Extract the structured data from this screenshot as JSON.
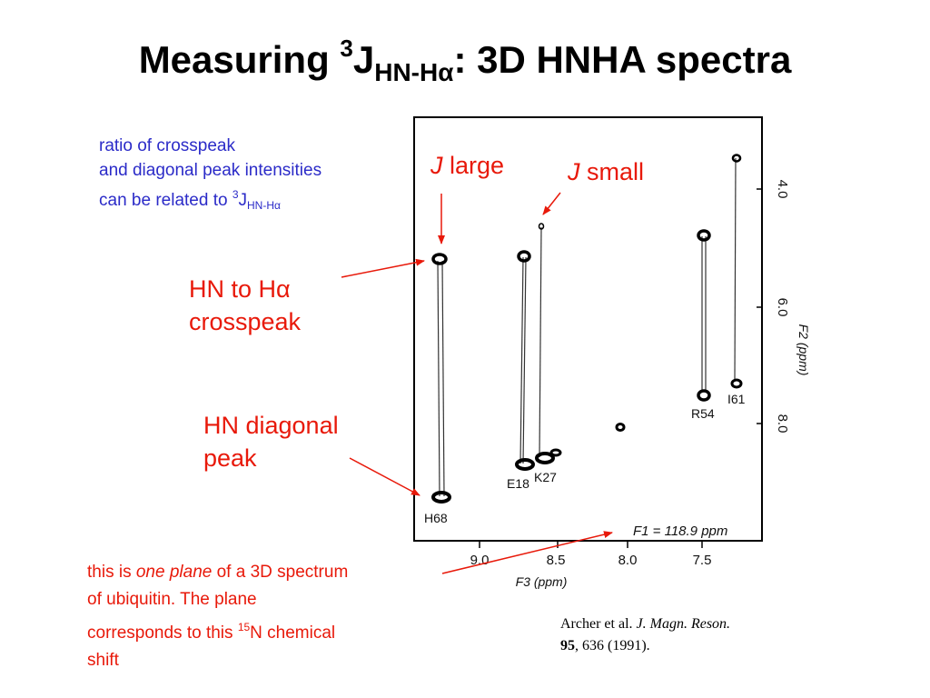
{
  "title": {
    "prefix": "Measuring ",
    "superscript": "3",
    "letter": "J",
    "subscript": "HN-Hα",
    "suffix": ": 3D HNHA spectra"
  },
  "note": {
    "line1": "ratio of crosspeak",
    "line2": "and diagonal peak intensities",
    "line3_prefix": "can be related to ",
    "line3_sup": "3",
    "line3_letter": "J",
    "line3_sub": "HN-Hα"
  },
  "callouts": {
    "j_large_italic": "J",
    "j_large_text": " large",
    "j_small_italic": "J",
    "j_small_text": " small",
    "crosspeak_line1": "HN to Hα",
    "crosspeak_line2": "crosspeak",
    "diagonal_line1": "HN diagonal",
    "diagonal_line2": "peak"
  },
  "plane_note": {
    "line1_prefix": "this is ",
    "line1_italic": "one plane",
    "line1_suffix": " of a 3D spectrum",
    "line2": "of ubiquitin.  The plane",
    "line3": "corresponds to  this ",
    "line3_sup": "15",
    "line3_after": "N chemical",
    "line4": "shift"
  },
  "citation": {
    "authors": "Archer et al. ",
    "journal": "J. Magn. Reson.",
    "volume": "95",
    "rest": ", 636 (1991)."
  },
  "spectrum": {
    "f1_label": "F1 = 118.9 ppm",
    "x_axis_label": "F3 (ppm)",
    "y_axis_label": "F2 (ppm)",
    "x_ticks": [
      "9.0",
      "8.5",
      "8.0",
      "7.5"
    ],
    "y_ticks": [
      "4.0",
      "6.0",
      "8.0"
    ],
    "residues": [
      "H68",
      "E18",
      "K27",
      "R54",
      "I61"
    ]
  },
  "colors": {
    "title": "#000000",
    "note": "#2b2bc8",
    "callout": "#e8190a"
  }
}
